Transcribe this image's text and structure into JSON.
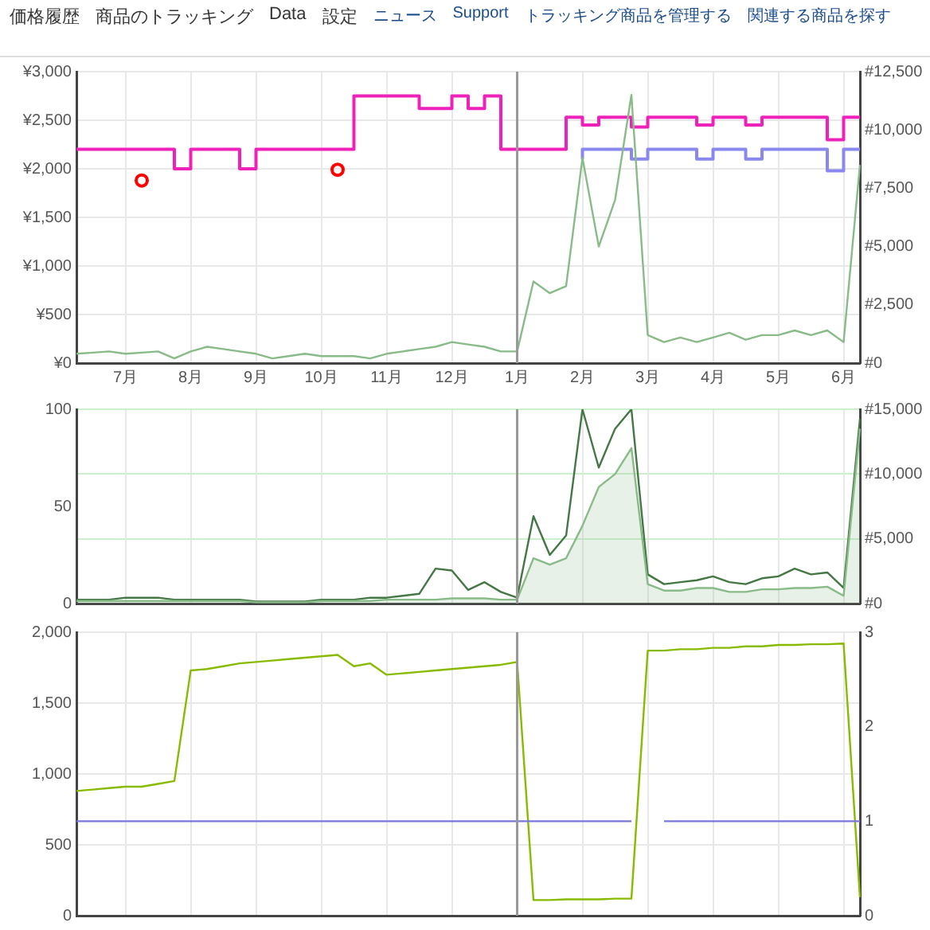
{
  "chart_data": [
    {
      "type": "line",
      "annotations": [
        "価格履歴",
        "商品のトラッキング",
        "Data",
        "設定",
        "ニュース",
        "Support",
        "トラッキング商品を管理する",
        "関連する商品を探す"
      ],
      "categories": [
        null,
        null,
        null,
        "7月",
        null,
        null,
        null,
        "8月",
        null,
        null,
        null,
        "9月",
        null,
        null,
        null,
        "10月",
        null,
        null,
        null,
        "11月",
        null,
        null,
        null,
        "12月",
        null,
        null,
        null,
        "1月",
        null,
        null,
        null,
        "2月",
        null,
        null,
        null,
        "3月",
        null,
        null,
        null,
        "4月",
        null,
        null,
        null,
        "5月",
        null,
        null,
        null,
        "6月",
        null
      ],
      "ylim": [
        0,
        3000
      ],
      "yticks": [
        {
          "value": 0,
          "label": "¥0"
        },
        {
          "value": 500,
          "label": "¥500"
        },
        {
          "value": 1000,
          "label": "¥1,000"
        },
        {
          "value": 1500,
          "label": "¥1,500"
        },
        {
          "value": 2000,
          "label": "¥2,000"
        },
        {
          "value": 2500,
          "label": "¥2,500"
        },
        {
          "value": 3000,
          "label": "¥3,000"
        }
      ],
      "y2lim": [
        0,
        12500
      ],
      "y2ticks": [
        {
          "value": 0,
          "label": "#0"
        },
        {
          "value": 2500,
          "label": "#2,500"
        },
        {
          "value": 5000,
          "label": "#5,000"
        },
        {
          "value": 7500,
          "label": "#7,500"
        },
        {
          "value": 10000,
          "label": "#10,000"
        },
        {
          "value": 12500,
          "label": "#12,500"
        }
      ],
      "grid": true,
      "legend": false,
      "ref_lines": [
        {
          "axis": "x",
          "value": "1月",
          "color": "#999999"
        }
      ],
      "series": [
        {
          "axis": "y2",
          "color": "#88bb88",
          "values": [
            400,
            450,
            500,
            400,
            450,
            500,
            200,
            500,
            700,
            600,
            500,
            400,
            200,
            300,
            400,
            300,
            300,
            300,
            200,
            400,
            500,
            600,
            700,
            900,
            800,
            700,
            500,
            500,
            3500,
            3000,
            3300,
            8800,
            5000,
            7000,
            11500,
            1200,
            900,
            1100,
            900,
            1100,
            1300,
            1000,
            1200,
            1200,
            1400,
            1200,
            1400,
            900,
            8500
          ]
        },
        {
          "type": "step",
          "color": "#8888ee",
          "values": [
            null,
            null,
            null,
            null,
            null,
            null,
            null,
            null,
            null,
            null,
            null,
            null,
            null,
            null,
            null,
            null,
            null,
            null,
            null,
            null,
            null,
            null,
            null,
            null,
            null,
            null,
            null,
            null,
            null,
            null,
            null,
            2100,
            2200,
            2200,
            2200,
            2100,
            2200,
            2200,
            2200,
            2100,
            2200,
            2200,
            2100,
            2200,
            2200,
            2200,
            2200,
            1980,
            2200
          ]
        },
        {
          "type": "step",
          "color": "#ee22bb",
          "values": [
            2200,
            2200,
            2200,
            2200,
            2200,
            2200,
            2200,
            2000,
            2200,
            2200,
            2200,
            2000,
            2200,
            2200,
            2200,
            2200,
            2200,
            2200,
            2750,
            2750,
            2750,
            2750,
            2620,
            2620,
            2750,
            2620,
            2750,
            2200,
            2200,
            2200,
            2200,
            2530,
            2450,
            2530,
            2530,
            2430,
            2530,
            2530,
            2530,
            2450,
            2530,
            2530,
            2450,
            2530,
            2530,
            2530,
            2530,
            2300,
            2530
          ]
        },
        {
          "type": "scatter",
          "marker": "circle",
          "color": "#ff0000",
          "values": [
            null,
            null,
            null,
            null,
            1880,
            null,
            null,
            null,
            null,
            null,
            null,
            null,
            null,
            null,
            null,
            null,
            1990,
            null,
            null,
            null,
            null,
            null,
            null,
            null,
            null,
            null,
            null,
            null,
            null,
            null,
            null,
            null,
            null,
            null,
            null,
            null,
            null,
            null,
            null,
            null,
            null,
            null,
            null,
            null,
            null,
            null,
            null,
            null,
            null
          ]
        }
      ]
    },
    {
      "type": "line",
      "tick_labels": "y",
      "categories": [
        null,
        null,
        null,
        "7月",
        null,
        null,
        null,
        "8月",
        null,
        null,
        null,
        "9月",
        null,
        null,
        null,
        "10月",
        null,
        null,
        null,
        "11月",
        null,
        null,
        null,
        "12月",
        null,
        null,
        null,
        "1月",
        null,
        null,
        null,
        "2月",
        null,
        null,
        null,
        "3月",
        null,
        null,
        null,
        "4月",
        null,
        null,
        null,
        "5月",
        null,
        null,
        null,
        "6月",
        null
      ],
      "ylim": [
        0,
        100
      ],
      "yticks": [
        0,
        50,
        100
      ],
      "y2lim": [
        0,
        15000
      ],
      "y2ticks": [
        {
          "value": 0,
          "label": "#0"
        },
        {
          "value": 5000,
          "label": "#5,000"
        },
        {
          "value": 10000,
          "label": "#10,000"
        },
        {
          "value": 15000,
          "label": "#15,000"
        }
      ],
      "grid": true,
      "legend": false,
      "ref_lines": [
        {
          "axis": "x",
          "value": "1月",
          "color": "#999999"
        }
      ],
      "series": [
        {
          "type": "area",
          "axis": "y2",
          "color": "#88bb88",
          "values": [
            200,
            200,
            200,
            200,
            200,
            200,
            200,
            200,
            200,
            200,
            200,
            100,
            100,
            100,
            100,
            200,
            200,
            200,
            200,
            300,
            300,
            300,
            300,
            400,
            400,
            400,
            300,
            300,
            3500,
            3000,
            3500,
            6000,
            9000,
            10000,
            12000,
            1500,
            1000,
            1000,
            1200,
            1200,
            900,
            900,
            1100,
            1100,
            1200,
            1200,
            1300,
            600,
            13500
          ]
        },
        {
          "color": "#447744",
          "values": [
            2,
            2,
            2,
            3,
            3,
            3,
            2,
            2,
            2,
            2,
            2,
            1,
            1,
            1,
            1,
            2,
            2,
            2,
            3,
            3,
            4,
            5,
            18,
            17,
            7,
            11,
            6,
            3,
            45,
            25,
            35,
            100,
            70,
            90,
            100,
            15,
            10,
            11,
            12,
            14,
            11,
            10,
            13,
            14,
            18,
            15,
            16,
            8,
            95
          ]
        }
      ]
    },
    {
      "type": "line",
      "tick_labels": "y",
      "categories": [
        null,
        null,
        null,
        "7月",
        null,
        null,
        null,
        "8月",
        null,
        null,
        null,
        "9月",
        null,
        null,
        null,
        "10月",
        null,
        null,
        null,
        "11月",
        null,
        null,
        null,
        "12月",
        null,
        null,
        null,
        "1月",
        null,
        null,
        null,
        "2月",
        null,
        null,
        null,
        "3月",
        null,
        null,
        null,
        "4月",
        null,
        null,
        null,
        "5月",
        null,
        null,
        null,
        "6月",
        null
      ],
      "ylim": [
        0,
        2000
      ],
      "yticks": [
        0,
        500,
        {
          "value": 1000,
          "label": "1,000"
        },
        {
          "value": 1500,
          "label": "1,500"
        },
        {
          "value": 2000,
          "label": "2,000"
        }
      ],
      "y2lim": [
        0,
        3
      ],
      "y2ticks": [
        0,
        1,
        2,
        3
      ],
      "grid": true,
      "legend": false,
      "ref_lines": [
        {
          "axis": "x",
          "value": "1月",
          "color": "#999999"
        }
      ],
      "series": [
        {
          "axis": "y2",
          "color": "#7777dd",
          "values": [
            1,
            1,
            1,
            1,
            1,
            1,
            1,
            1,
            1,
            1,
            1,
            1,
            1,
            1,
            1,
            1,
            1,
            1,
            1,
            1,
            1,
            1,
            1,
            1,
            1,
            1,
            1,
            1,
            1,
            1,
            1,
            1,
            1,
            1,
            1,
            null,
            1,
            1,
            1,
            1,
            1,
            1,
            1,
            1,
            1,
            1,
            1,
            1,
            1
          ]
        },
        {
          "color": "#88bb00",
          "values": [
            880,
            890,
            900,
            910,
            910,
            930,
            950,
            1730,
            1740,
            1760,
            1780,
            1790,
            1800,
            1810,
            1820,
            1830,
            1840,
            1760,
            1780,
            1700,
            1710,
            1720,
            1730,
            1740,
            1750,
            1760,
            1770,
            1790,
            110,
            110,
            115,
            115,
            115,
            120,
            120,
            1870,
            1870,
            1880,
            1880,
            1890,
            1890,
            1900,
            1900,
            1910,
            1910,
            1915,
            1915,
            1920,
            130
          ]
        }
      ]
    }
  ]
}
